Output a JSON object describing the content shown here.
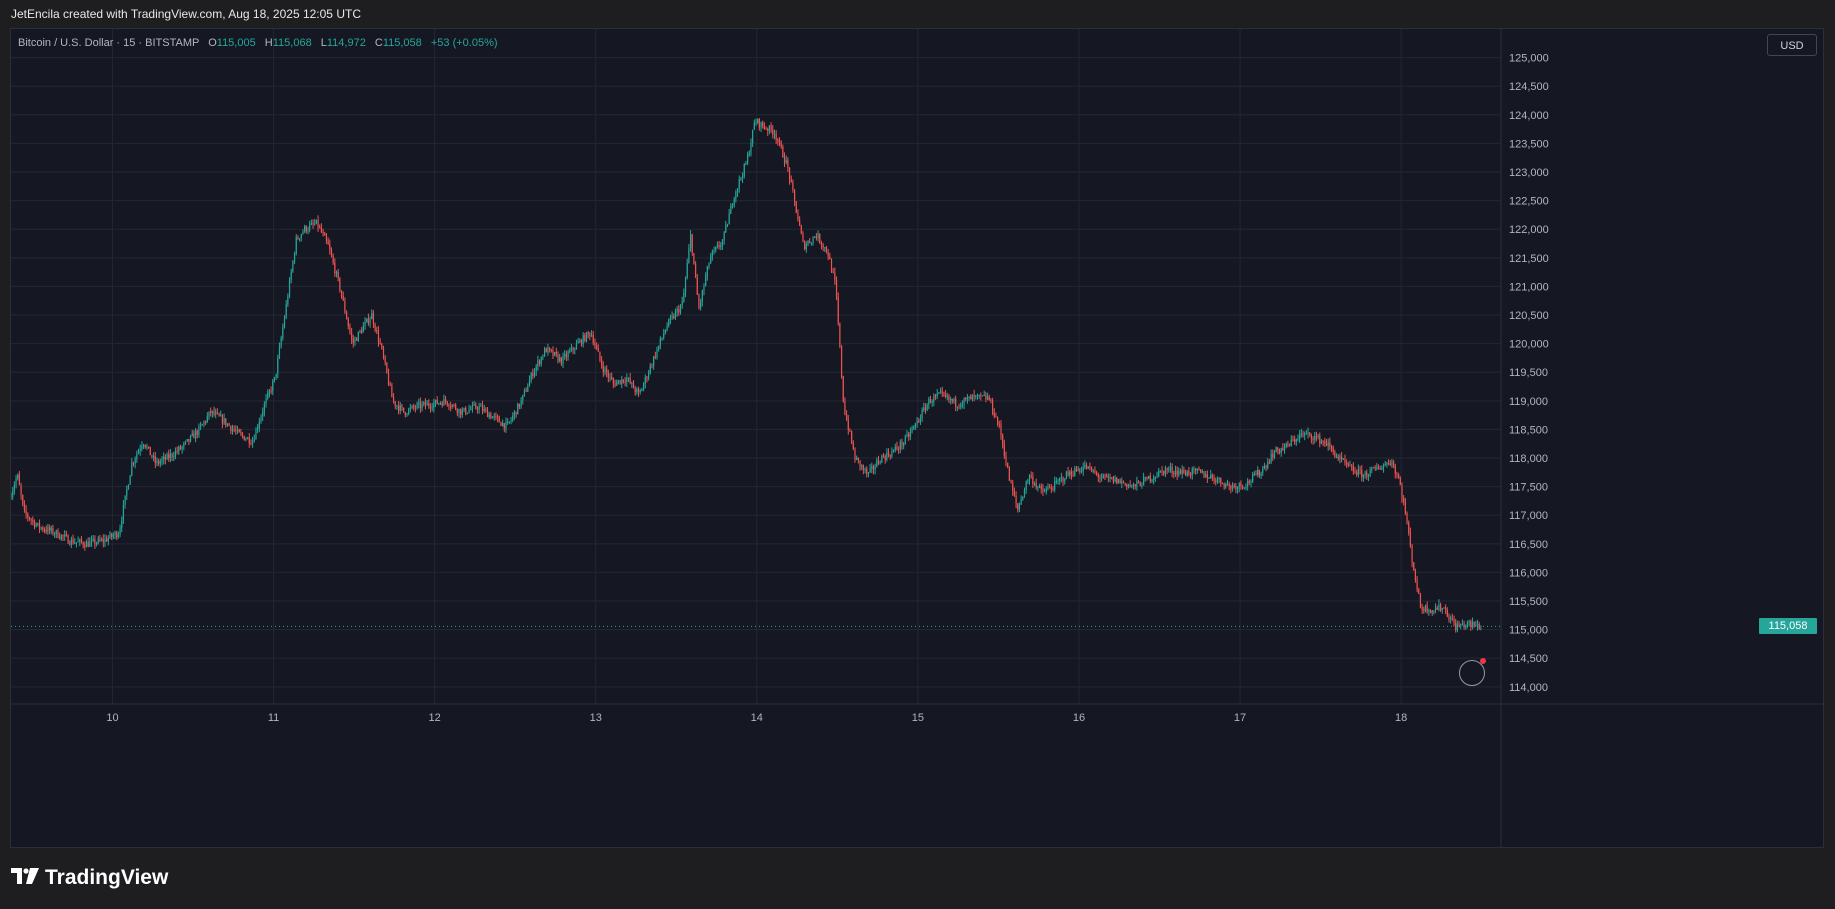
{
  "header": {
    "attribution": "JetEncila created with TradingView.com, Aug 18, 2025 12:05 UTC"
  },
  "legend": {
    "symbol": "Bitcoin / U.S. Dollar · 15 · BITSTAMP",
    "o_label": "O",
    "o_value": "115,005",
    "h_label": "H",
    "h_value": "115,068",
    "l_label": "L",
    "l_value": "114,972",
    "c_label": "C",
    "c_value": "115,058",
    "change": "+53 (+0.05%)"
  },
  "currency_label": "USD",
  "last_price_label": "115,058",
  "footer": {
    "brand": "TradingView"
  },
  "colors": {
    "up": "#26a69a",
    "down": "#ef5350",
    "background": "#151823",
    "grid": "#232734",
    "axis_text": "#b2b5be"
  },
  "icons": [
    "tradingview-logo-icon",
    "reset-chart-icon"
  ],
  "chart_data": {
    "type": "candlestick",
    "symbol": "BTCUSD",
    "interval": "15",
    "exchange": "BITSTAMP",
    "y_ticks": [
      114000,
      114500,
      115000,
      115500,
      116000,
      116500,
      117000,
      117500,
      118000,
      118500,
      119000,
      119500,
      120000,
      120500,
      121000,
      121500,
      122000,
      122500,
      123000,
      123500,
      124000,
      124500,
      125000
    ],
    "y_tick_labels": [
      "114,000",
      "114,500",
      "115,000",
      "115,500",
      "116,000",
      "116,500",
      "117,000",
      "117,500",
      "118,000",
      "118,500",
      "119,000",
      "119,500",
      "120,000",
      "120,500",
      "121,000",
      "121,500",
      "122,000",
      "122,500",
      "123,000",
      "123,500",
      "124,000",
      "124,500",
      "125,000"
    ],
    "ylim": [
      113700,
      125500
    ],
    "x_tick_labels": [
      "10",
      "11",
      "12",
      "13",
      "14",
      "15",
      "16",
      "17",
      "18"
    ],
    "x_ticks_day": [
      10,
      11,
      12,
      13,
      14,
      15,
      16,
      17,
      18
    ],
    "xlim_day": [
      9.37,
      18.62
    ],
    "last_price": 115058,
    "grid": true,
    "price_path": [
      [
        9.37,
        117300
      ],
      [
        9.42,
        117700
      ],
      [
        9.46,
        117050
      ],
      [
        9.55,
        116800
      ],
      [
        9.65,
        116700
      ],
      [
        9.75,
        116550
      ],
      [
        9.85,
        116500
      ],
      [
        9.95,
        116550
      ],
      [
        10.05,
        116700
      ],
      [
        10.13,
        117900
      ],
      [
        10.2,
        118300
      ],
      [
        10.28,
        117900
      ],
      [
        10.35,
        118000
      ],
      [
        10.45,
        118200
      ],
      [
        10.55,
        118500
      ],
      [
        10.62,
        118800
      ],
      [
        10.7,
        118650
      ],
      [
        10.8,
        118400
      ],
      [
        10.88,
        118300
      ],
      [
        10.95,
        118900
      ],
      [
        11.02,
        119400
      ],
      [
        11.08,
        120500
      ],
      [
        11.15,
        121800
      ],
      [
        11.2,
        122000
      ],
      [
        11.28,
        122100
      ],
      [
        11.35,
        121700
      ],
      [
        11.42,
        121000
      ],
      [
        11.5,
        120000
      ],
      [
        11.57,
        120300
      ],
      [
        11.62,
        120500
      ],
      [
        11.68,
        119900
      ],
      [
        11.75,
        119000
      ],
      [
        11.82,
        118800
      ],
      [
        11.9,
        118900
      ],
      [
        12.0,
        118950
      ],
      [
        12.08,
        119000
      ],
      [
        12.18,
        118800
      ],
      [
        12.28,
        118900
      ],
      [
        12.38,
        118700
      ],
      [
        12.46,
        118550
      ],
      [
        12.55,
        119000
      ],
      [
        12.62,
        119500
      ],
      [
        12.7,
        119900
      ],
      [
        12.8,
        119700
      ],
      [
        12.9,
        120000
      ],
      [
        12.98,
        120200
      ],
      [
        13.05,
        119600
      ],
      [
        13.12,
        119300
      ],
      [
        13.2,
        119400
      ],
      [
        13.28,
        119100
      ],
      [
        13.35,
        119600
      ],
      [
        13.45,
        120300
      ],
      [
        13.55,
        120700
      ],
      [
        13.6,
        121900
      ],
      [
        13.65,
        120600
      ],
      [
        13.72,
        121500
      ],
      [
        13.8,
        121800
      ],
      [
        13.87,
        122600
      ],
      [
        13.95,
        123200
      ],
      [
        14.0,
        123900
      ],
      [
        14.05,
        123800
      ],
      [
        14.12,
        123700
      ],
      [
        14.2,
        123100
      ],
      [
        14.25,
        122400
      ],
      [
        14.3,
        121700
      ],
      [
        14.38,
        121900
      ],
      [
        14.45,
        121600
      ],
      [
        14.5,
        121000
      ],
      [
        14.55,
        118900
      ],
      [
        14.62,
        118000
      ],
      [
        14.7,
        117700
      ],
      [
        14.78,
        118000
      ],
      [
        14.85,
        118100
      ],
      [
        14.93,
        118300
      ],
      [
        15.0,
        118600
      ],
      [
        15.08,
        119000
      ],
      [
        15.15,
        119100
      ],
      [
        15.25,
        118950
      ],
      [
        15.35,
        119050
      ],
      [
        15.45,
        119050
      ],
      [
        15.52,
        118500
      ],
      [
        15.58,
        117600
      ],
      [
        15.63,
        117100
      ],
      [
        15.7,
        117700
      ],
      [
        15.78,
        117400
      ],
      [
        15.85,
        117500
      ],
      [
        15.93,
        117700
      ],
      [
        16.05,
        117850
      ],
      [
        16.15,
        117650
      ],
      [
        16.25,
        117600
      ],
      [
        16.35,
        117500
      ],
      [
        16.45,
        117650
      ],
      [
        16.55,
        117800
      ],
      [
        16.65,
        117750
      ],
      [
        16.75,
        117750
      ],
      [
        16.85,
        117650
      ],
      [
        16.95,
        117500
      ],
      [
        17.05,
        117550
      ],
      [
        17.15,
        117800
      ],
      [
        17.22,
        118100
      ],
      [
        17.3,
        118200
      ],
      [
        17.38,
        118400
      ],
      [
        17.45,
        118400
      ],
      [
        17.55,
        118250
      ],
      [
        17.62,
        118000
      ],
      [
        17.7,
        117800
      ],
      [
        17.78,
        117700
      ],
      [
        17.85,
        117800
      ],
      [
        17.95,
        117950
      ],
      [
        18.0,
        117600
      ],
      [
        18.04,
        117000
      ],
      [
        18.08,
        116200
      ],
      [
        18.13,
        115400
      ],
      [
        18.2,
        115350
      ],
      [
        18.27,
        115400
      ],
      [
        18.35,
        115050
      ],
      [
        18.42,
        115100
      ],
      [
        18.5,
        115058
      ]
    ]
  }
}
